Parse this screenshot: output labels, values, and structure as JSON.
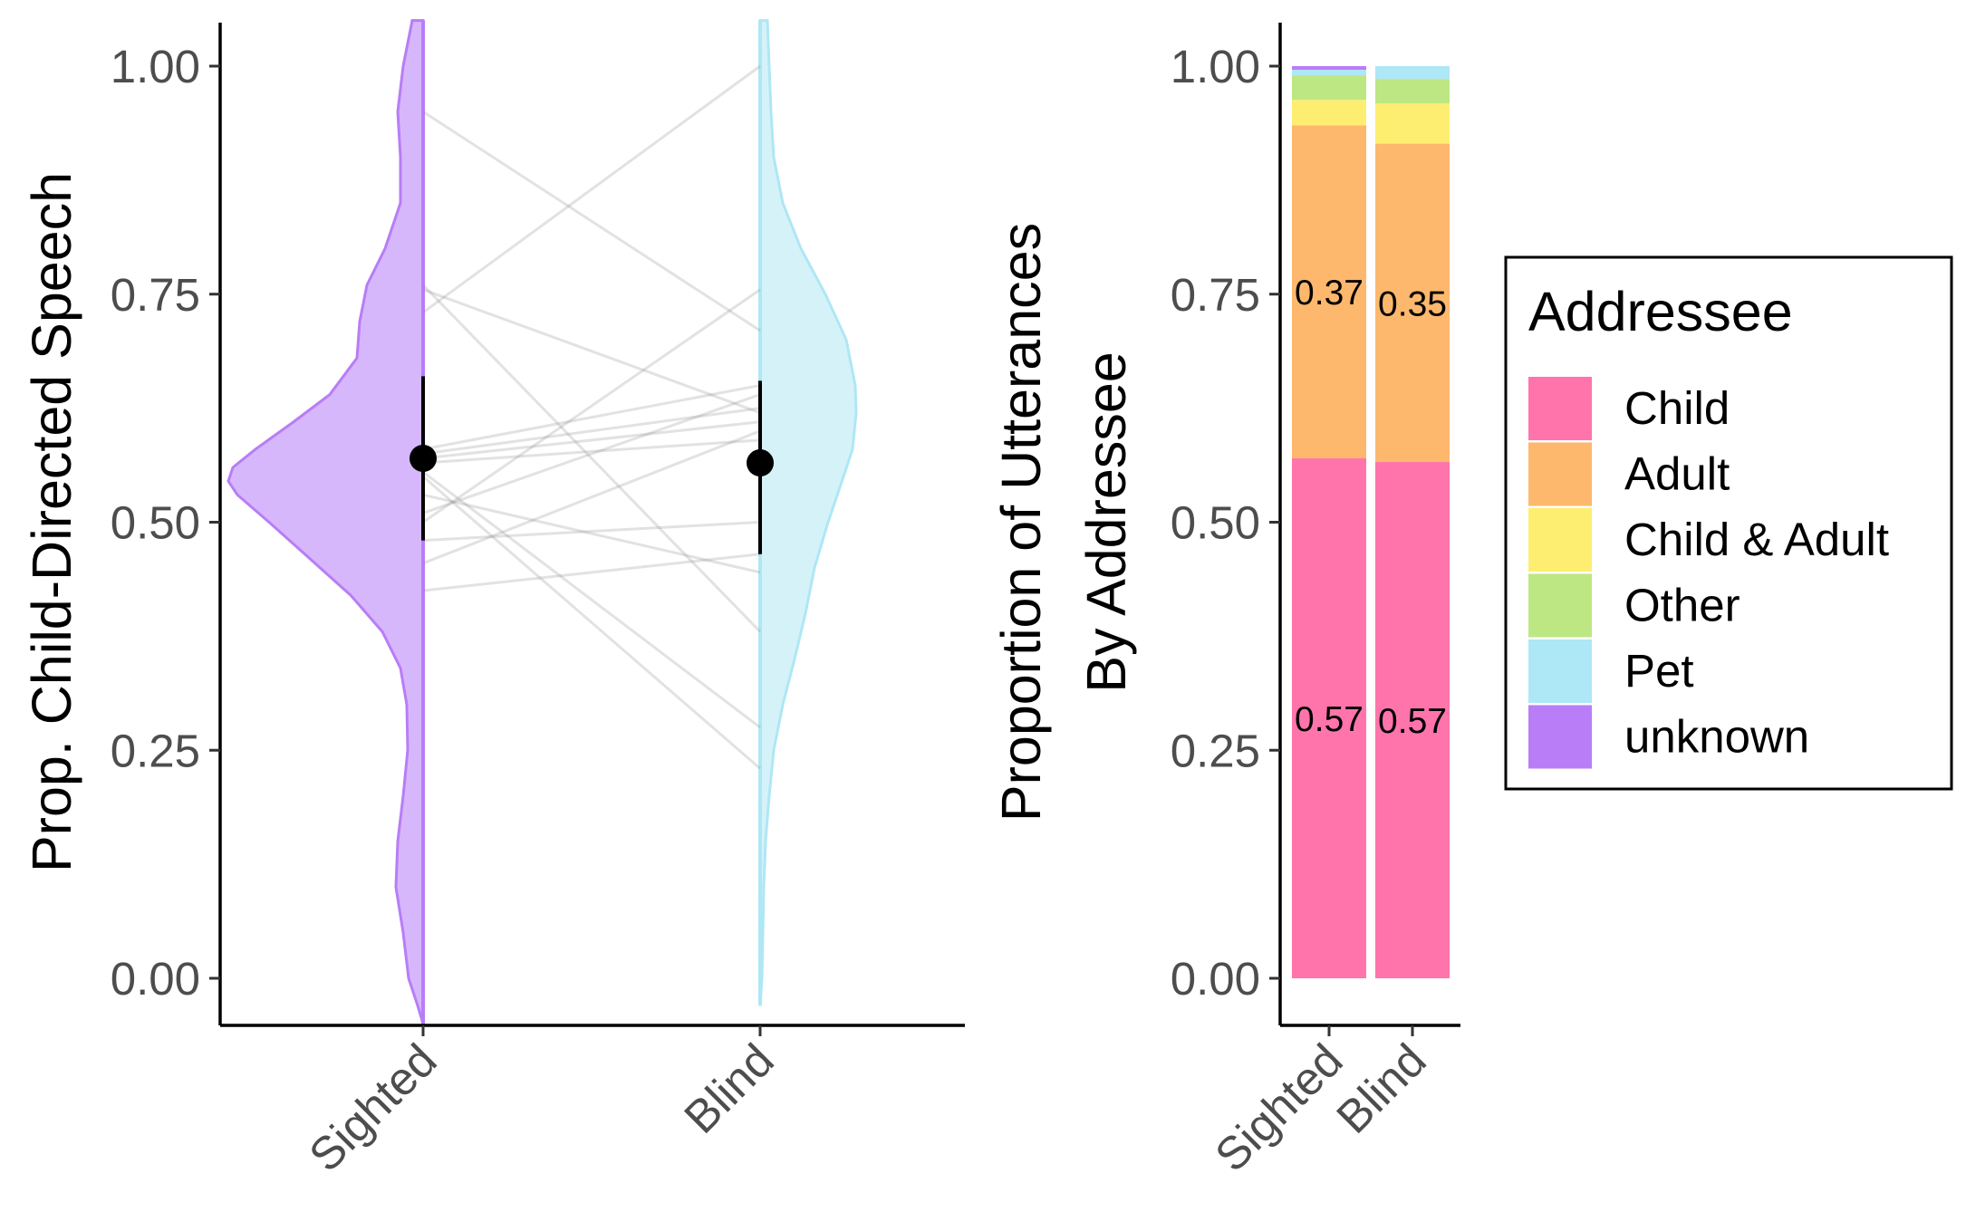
{
  "chart_data": [
    {
      "type": "violin",
      "ylabel": "Prop. Child-Directed Speech",
      "xlabel": "",
      "ylim": [
        0,
        1
      ],
      "yticks": [
        "0.00",
        "0.25",
        "0.50",
        "0.75",
        "1.00"
      ],
      "categories": [
        "Sighted",
        "Blind"
      ],
      "colors": {
        "Sighted": "#b87df7",
        "Blind": "#aee7f5"
      },
      "means": [
        {
          "group": "Sighted",
          "mean": 0.57,
          "lower": 0.48,
          "upper": 0.66
        },
        {
          "group": "Blind",
          "mean": 0.565,
          "lower": 0.465,
          "upper": 0.655
        }
      ],
      "paired_values": [
        [
          0.95,
          0.71
        ],
        [
          0.76,
          0.38
        ],
        [
          0.755,
          0.62
        ],
        [
          0.73,
          1.0
        ],
        [
          0.58,
          0.65
        ],
        [
          0.575,
          0.625
        ],
        [
          0.57,
          0.61
        ],
        [
          0.565,
          0.59
        ],
        [
          0.555,
          0.275
        ],
        [
          0.55,
          0.23
        ],
        [
          0.53,
          0.445
        ],
        [
          0.51,
          0.64
        ],
        [
          0.5,
          0.755
        ],
        [
          0.48,
          0.5
        ],
        [
          0.455,
          0.6
        ],
        [
          0.425,
          0.465
        ]
      ]
    },
    {
      "type": "bar",
      "stacked": true,
      "ylabel": "Proportion of Utterances\nBy Addressee",
      "ylabel_lines": [
        "Proportion of Utterances",
        "By Addressee"
      ],
      "xlabel": "",
      "ylim": [
        0,
        1
      ],
      "yticks": [
        "0.00",
        "0.25",
        "0.50",
        "0.75",
        "1.00"
      ],
      "categories": [
        "Sighted",
        "Blind"
      ],
      "series": [
        {
          "name": "Child",
          "color": "#ff74ab",
          "values": [
            0.57,
            0.566
          ]
        },
        {
          "name": "Adult",
          "color": "#fdb86d",
          "values": [
            0.365,
            0.349
          ]
        },
        {
          "name": "Child & Adult",
          "color": "#fdee72",
          "values": [
            0.028,
            0.044
          ]
        },
        {
          "name": "Other",
          "color": "#bde783",
          "values": [
            0.027,
            0.027
          ]
        },
        {
          "name": "Pet",
          "color": "#aee7f5",
          "values": [
            0.006,
            0.014
          ]
        },
        {
          "name": "unknown",
          "color": "#b87df7",
          "values": [
            0.004,
            0.0
          ]
        }
      ],
      "bar_labels": [
        {
          "series": "Child",
          "labels": [
            "0.57",
            "0.57"
          ]
        },
        {
          "series": "Adult",
          "labels": [
            "0.37",
            "0.35"
          ]
        }
      ],
      "legend": {
        "title": "Addressee",
        "position": "right",
        "items": [
          "Child",
          "Adult",
          "Child & Adult",
          "Other",
          "Pet",
          "unknown"
        ]
      }
    }
  ]
}
